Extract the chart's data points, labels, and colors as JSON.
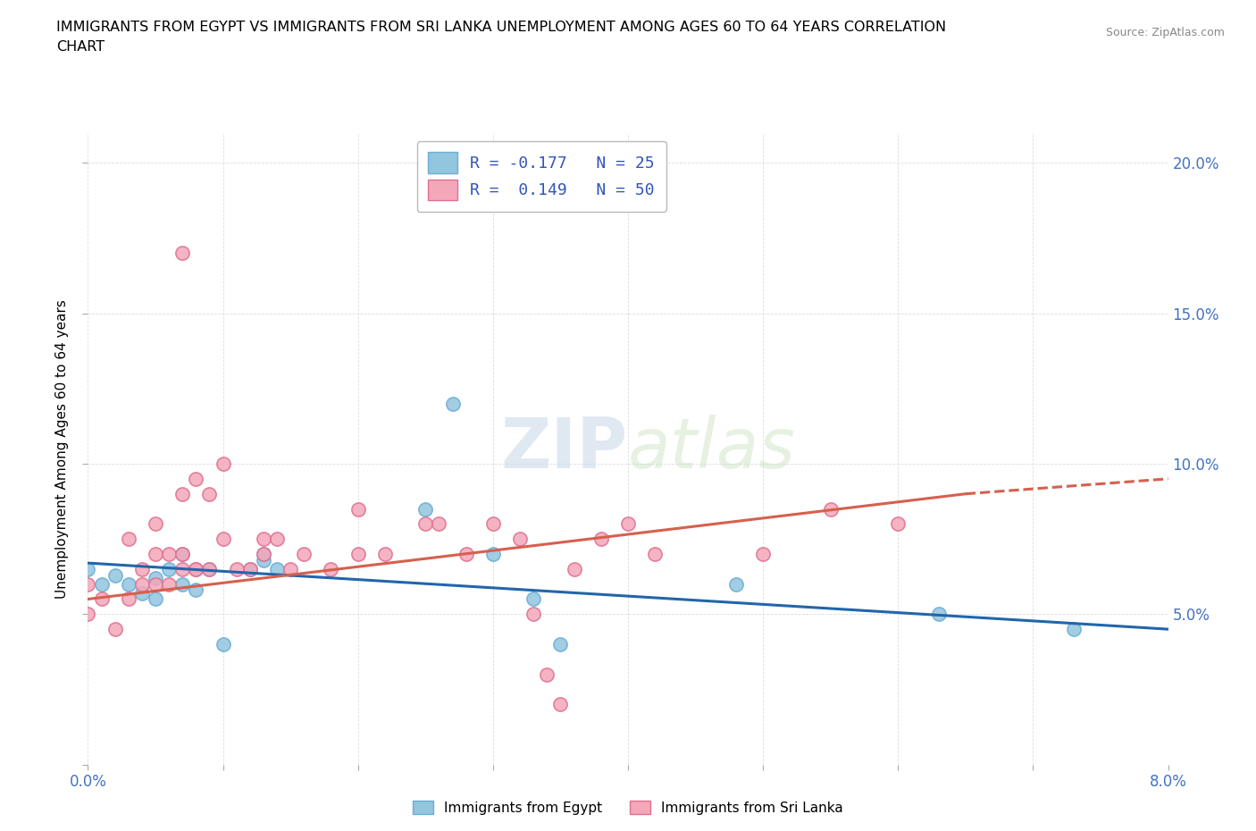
{
  "title_line1": "IMMIGRANTS FROM EGYPT VS IMMIGRANTS FROM SRI LANKA UNEMPLOYMENT AMONG AGES 60 TO 64 YEARS CORRELATION",
  "title_line2": "CHART",
  "source": "Source: ZipAtlas.com",
  "ylabel": "Unemployment Among Ages 60 to 64 years",
  "xlim": [
    0.0,
    0.08
  ],
  "ylim": [
    0.0,
    0.21
  ],
  "egypt_color": "#92c5de",
  "egypt_edge": "#6baed6",
  "srilanka_color": "#f4a7b9",
  "srilanka_edge": "#e07090",
  "egypt_line_color": "#2166ac",
  "srilanka_line_color": "#d6604d",
  "egypt_R": -0.177,
  "egypt_N": 25,
  "srilanka_R": 0.149,
  "srilanka_N": 50,
  "watermark": "ZIPatlas",
  "egypt_scatter_x": [
    0.0,
    0.001,
    0.002,
    0.003,
    0.004,
    0.005,
    0.005,
    0.006,
    0.007,
    0.007,
    0.008,
    0.009,
    0.01,
    0.012,
    0.013,
    0.013,
    0.014,
    0.025,
    0.027,
    0.03,
    0.033,
    0.035,
    0.048,
    0.063,
    0.073
  ],
  "egypt_scatter_y": [
    0.065,
    0.06,
    0.063,
    0.06,
    0.057,
    0.055,
    0.062,
    0.065,
    0.06,
    0.07,
    0.058,
    0.065,
    0.04,
    0.065,
    0.068,
    0.07,
    0.065,
    0.085,
    0.12,
    0.07,
    0.055,
    0.04,
    0.06,
    0.05,
    0.045
  ],
  "srilanka_scatter_x": [
    0.0,
    0.0,
    0.001,
    0.002,
    0.003,
    0.003,
    0.004,
    0.004,
    0.005,
    0.005,
    0.005,
    0.006,
    0.006,
    0.007,
    0.007,
    0.007,
    0.007,
    0.008,
    0.008,
    0.008,
    0.009,
    0.009,
    0.01,
    0.01,
    0.011,
    0.012,
    0.013,
    0.013,
    0.014,
    0.015,
    0.016,
    0.018,
    0.02,
    0.02,
    0.022,
    0.025,
    0.026,
    0.028,
    0.03,
    0.032,
    0.033,
    0.034,
    0.035,
    0.036,
    0.038,
    0.04,
    0.042,
    0.05,
    0.055,
    0.06
  ],
  "srilanka_scatter_y": [
    0.06,
    0.05,
    0.055,
    0.045,
    0.055,
    0.075,
    0.06,
    0.065,
    0.06,
    0.07,
    0.08,
    0.06,
    0.07,
    0.065,
    0.07,
    0.09,
    0.17,
    0.065,
    0.095,
    0.065,
    0.065,
    0.09,
    0.075,
    0.1,
    0.065,
    0.065,
    0.07,
    0.075,
    0.075,
    0.065,
    0.07,
    0.065,
    0.07,
    0.085,
    0.07,
    0.08,
    0.08,
    0.07,
    0.08,
    0.075,
    0.05,
    0.03,
    0.02,
    0.065,
    0.075,
    0.08,
    0.07,
    0.07,
    0.085,
    0.08
  ],
  "background_color": "#ffffff",
  "grid_color": "#dddddd",
  "legend_bottom_labels": [
    "Immigrants from Egypt",
    "Immigrants from Sri Lanka"
  ]
}
